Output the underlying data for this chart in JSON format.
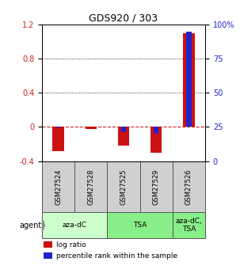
{
  "title": "GDS920 / 303",
  "samples": [
    "GSM27524",
    "GSM27528",
    "GSM27525",
    "GSM27529",
    "GSM27526"
  ],
  "log_ratios": [
    -0.28,
    -0.02,
    -0.22,
    -0.3,
    1.1
  ],
  "percentile_ranks": [
    24.5,
    25.5,
    21.0,
    20.0,
    95.0
  ],
  "log_bar_width": 0.35,
  "perc_bar_width": 0.15,
  "ylim_left": [
    -0.4,
    1.2
  ],
  "ylim_right": [
    0,
    100
  ],
  "yticks_left": [
    -0.4,
    0.0,
    0.4,
    0.8,
    1.2
  ],
  "yticks_right": [
    0,
    25,
    50,
    75,
    100
  ],
  "ytick_labels_right": [
    "0",
    "25",
    "50",
    "75",
    "100%"
  ],
  "dotted_lines": [
    0.4,
    0.8
  ],
  "dashed_zero_color": "#cc2222",
  "bar_color_red": "#cc1111",
  "bar_color_blue": "#2222cc",
  "agent_groups": [
    {
      "label": "aza-dC",
      "indices": [
        0,
        1
      ],
      "color": "#ccffcc"
    },
    {
      "label": "TSA",
      "indices": [
        2,
        3
      ],
      "color": "#88ee88"
    },
    {
      "label": "aza-dC,\nTSA",
      "indices": [
        4
      ],
      "color": "#88ee88"
    }
  ],
  "legend_red": "log ratio",
  "legend_blue": "percentile rank within the sample",
  "background_color": "#ffffff",
  "tick_label_color_left": "#cc2222",
  "tick_label_color_right": "#2222cc",
  "percentile_rank_zero": 25.0,
  "sample_box_color": "#d0d0d0",
  "title_fontsize": 9
}
